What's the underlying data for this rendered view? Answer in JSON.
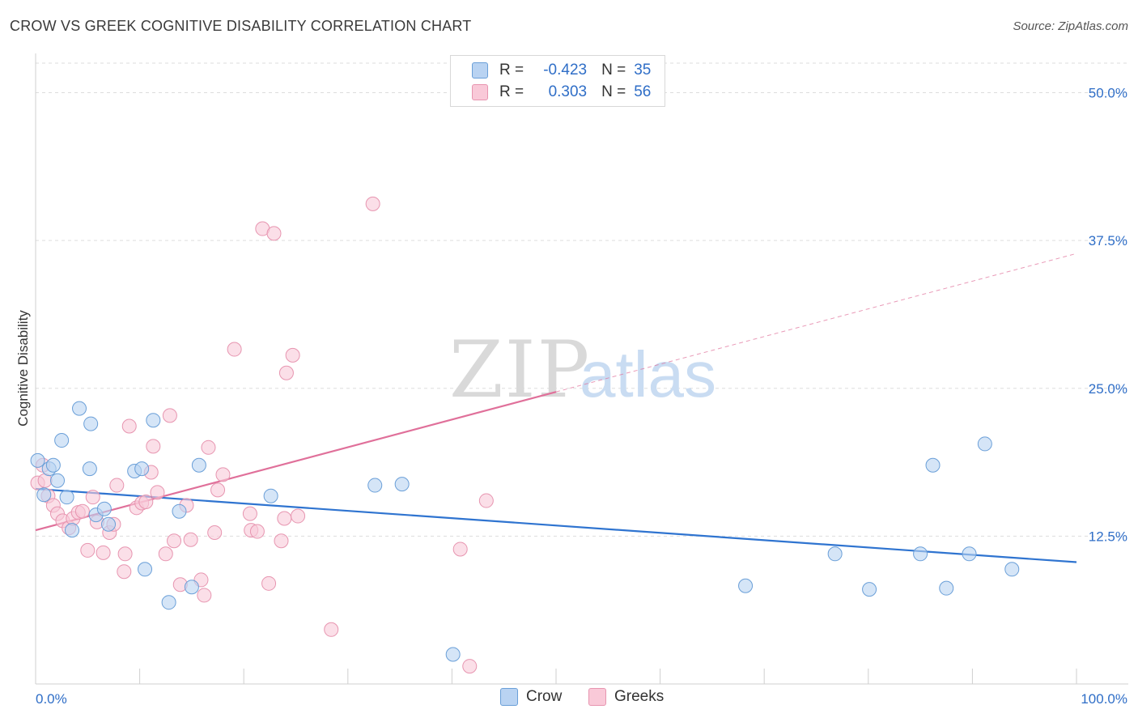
{
  "title": "CROW VS GREEK COGNITIVE DISABILITY CORRELATION CHART",
  "source": "Source: ZipAtlas.com",
  "watermark": {
    "zip": "ZIP",
    "atlas": "atlas"
  },
  "legend": {
    "rows": [
      {
        "r_label": "R =",
        "r_value": "-0.423",
        "n_label": "N =",
        "n_value": "35"
      },
      {
        "r_label": "R =",
        "r_value": "0.303",
        "n_label": "N =",
        "n_value": "56"
      }
    ]
  },
  "bottom_legend": {
    "crow": "Crow",
    "greeks": "Greeks"
  },
  "colors": {
    "crow_fill": "#b9d3f2",
    "crow_stroke": "#6a9fd8",
    "crow_line": "#2f74d0",
    "greek_fill": "#f9c9d8",
    "greek_stroke": "#e795b0",
    "greek_line": "#e0709a",
    "axis_text": "#2f6ec7",
    "grid": "#dddddd"
  },
  "chart_data": {
    "type": "scatter",
    "title": "CROW VS GREEK COGNITIVE DISABILITY CORRELATION CHART",
    "xlabel": "",
    "ylabel": "Cognitive Disability",
    "xlim": [
      0,
      100
    ],
    "ylim": [
      0,
      52.5
    ],
    "x_tick_labels": [
      "0.0%",
      "100.0%"
    ],
    "y_ticks": [
      12.5,
      25.0,
      37.5,
      50.0
    ],
    "y_tick_labels": [
      "12.5%",
      "25.0%",
      "37.5%",
      "50.0%"
    ],
    "grid": true,
    "series": [
      {
        "name": "Crow",
        "r": -0.423,
        "n": 35,
        "trend": {
          "x": [
            0,
            100
          ],
          "y": [
            16.5,
            10.3
          ],
          "dashed_from": null
        },
        "points": [
          [
            0.2,
            18.9
          ],
          [
            0.8,
            16.0
          ],
          [
            1.3,
            18.2
          ],
          [
            1.7,
            18.5
          ],
          [
            2.1,
            17.2
          ],
          [
            2.5,
            20.6
          ],
          [
            3.0,
            15.8
          ],
          [
            3.5,
            13.0
          ],
          [
            4.2,
            23.3
          ],
          [
            5.2,
            18.2
          ],
          [
            5.3,
            22.0
          ],
          [
            5.8,
            14.3
          ],
          [
            6.6,
            14.8
          ],
          [
            7.0,
            13.5
          ],
          [
            9.5,
            18.0
          ],
          [
            10.2,
            18.2
          ],
          [
            10.5,
            9.7
          ],
          [
            11.3,
            22.3
          ],
          [
            12.8,
            6.9
          ],
          [
            13.8,
            14.6
          ],
          [
            15.0,
            8.2
          ],
          [
            15.7,
            18.5
          ],
          [
            22.6,
            15.9
          ],
          [
            32.6,
            16.8
          ],
          [
            35.2,
            16.9
          ],
          [
            40.1,
            2.5
          ],
          [
            68.2,
            8.3
          ],
          [
            76.8,
            11.0
          ],
          [
            80.1,
            8.0
          ],
          [
            85.0,
            11.0
          ],
          [
            86.2,
            18.5
          ],
          [
            87.5,
            8.1
          ],
          [
            89.7,
            11.0
          ],
          [
            91.2,
            20.3
          ],
          [
            93.8,
            9.7
          ]
        ]
      },
      {
        "name": "Greeks",
        "r": 0.303,
        "n": 56,
        "trend": {
          "x": [
            0,
            100
          ],
          "y": [
            13.0,
            36.4
          ],
          "dashed_from": 50
        },
        "points": [
          [
            0.2,
            17.0
          ],
          [
            0.7,
            18.5
          ],
          [
            0.9,
            17.2
          ],
          [
            1.2,
            15.9
          ],
          [
            1.7,
            15.1
          ],
          [
            2.1,
            14.4
          ],
          [
            2.6,
            13.8
          ],
          [
            3.2,
            13.2
          ],
          [
            3.6,
            14.0
          ],
          [
            4.1,
            14.5
          ],
          [
            4.5,
            14.6
          ],
          [
            5.0,
            11.3
          ],
          [
            5.5,
            15.8
          ],
          [
            5.9,
            13.7
          ],
          [
            6.5,
            11.1
          ],
          [
            7.1,
            12.8
          ],
          [
            7.5,
            13.5
          ],
          [
            7.8,
            16.8
          ],
          [
            8.5,
            9.5
          ],
          [
            8.6,
            11.0
          ],
          [
            9.0,
            21.8
          ],
          [
            9.7,
            14.9
          ],
          [
            10.2,
            15.3
          ],
          [
            10.6,
            15.4
          ],
          [
            11.1,
            17.9
          ],
          [
            11.3,
            20.1
          ],
          [
            11.7,
            16.2
          ],
          [
            12.5,
            11.0
          ],
          [
            12.9,
            22.7
          ],
          [
            13.3,
            12.1
          ],
          [
            13.9,
            8.4
          ],
          [
            14.5,
            15.1
          ],
          [
            14.9,
            12.2
          ],
          [
            15.9,
            8.8
          ],
          [
            16.2,
            7.5
          ],
          [
            16.6,
            20.0
          ],
          [
            17.2,
            12.8
          ],
          [
            17.5,
            16.4
          ],
          [
            18.0,
            17.7
          ],
          [
            19.1,
            28.3
          ],
          [
            20.6,
            14.4
          ],
          [
            20.7,
            13.0
          ],
          [
            21.3,
            12.9
          ],
          [
            21.8,
            38.5
          ],
          [
            22.4,
            8.5
          ],
          [
            22.9,
            38.1
          ],
          [
            23.6,
            12.1
          ],
          [
            23.9,
            14.0
          ],
          [
            24.1,
            26.3
          ],
          [
            24.7,
            27.8
          ],
          [
            25.2,
            14.2
          ],
          [
            28.4,
            4.6
          ],
          [
            32.4,
            40.6
          ],
          [
            40.8,
            11.4
          ],
          [
            41.7,
            1.5
          ],
          [
            43.3,
            15.5
          ]
        ]
      }
    ]
  }
}
